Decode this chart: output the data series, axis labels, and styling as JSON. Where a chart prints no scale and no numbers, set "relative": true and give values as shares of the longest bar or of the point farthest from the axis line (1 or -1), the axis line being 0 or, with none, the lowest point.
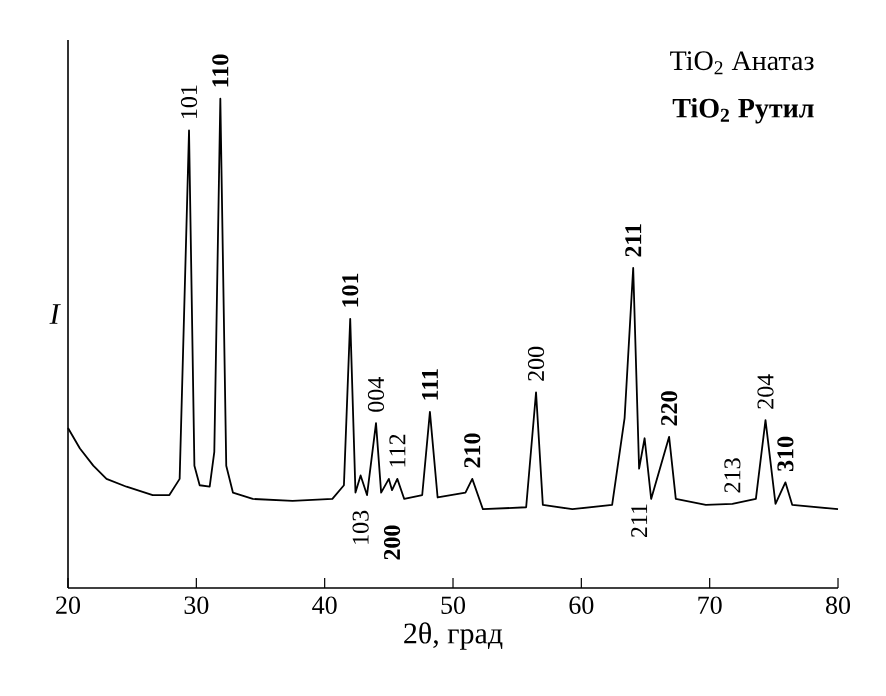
{
  "chart_data": {
    "type": "line",
    "relative": true,
    "xlabel": "2θ, град",
    "ylabel": "I",
    "color": "#000000",
    "xlim": [
      20,
      80
    ],
    "xticks": [
      20,
      30,
      40,
      50,
      60,
      70,
      80
    ],
    "x": [
      20,
      20.93,
      21.97,
      23.0,
      24.56,
      26.6,
      27.9,
      28.7,
      29.43,
      29.85,
      30.26,
      31.04,
      31.4,
      31.87,
      32.33,
      32.85,
      34.4,
      37.5,
      40.6,
      41.5,
      41.99,
      42.4,
      42.8,
      43.3,
      44.0,
      44.4,
      45.0,
      45.25,
      45.66,
      46.2,
      47.6,
      48.2,
      48.8,
      50.97,
      51.5,
      52.33,
      55.7,
      56.47,
      57.0,
      59.3,
      62.4,
      63.37,
      64.04,
      64.5,
      64.93,
      65.44,
      66.84,
      67.36,
      69.7,
      71.77,
      73.6,
      74.35,
      75.13,
      75.9,
      76.43,
      80
    ],
    "values": [
      0.327,
      0.285,
      0.25,
      0.223,
      0.207,
      0.19,
      0.19,
      0.223,
      0.935,
      0.25,
      0.21,
      0.207,
      0.278,
      1.0,
      0.25,
      0.195,
      0.182,
      0.178,
      0.182,
      0.21,
      0.55,
      0.195,
      0.23,
      0.19,
      0.337,
      0.195,
      0.223,
      0.2,
      0.223,
      0.182,
      0.19,
      0.36,
      0.185,
      0.195,
      0.223,
      0.161,
      0.165,
      0.4,
      0.17,
      0.161,
      0.17,
      0.347,
      0.654,
      0.244,
      0.306,
      0.182,
      0.309,
      0.182,
      0.17,
      0.172,
      0.182,
      0.343,
      0.172,
      0.216,
      0.17,
      0.161
    ],
    "annotations": [
      "TiO$_{2}$ Анатаз",
      "**TiO$_{2}$ Рутил**",
      {
        "text": "101",
        "x": 29.43,
        "y": 0.935
      },
      {
        "text": "**110**",
        "x": 31.87,
        "y": 1.0
      },
      {
        "text": "**101**",
        "x": 41.99,
        "y": 0.55
      },
      {
        "text": "004",
        "x": 44.0,
        "y": 0.337
      },
      {
        "text": "112",
        "x": 45.66,
        "y": 0.223
      },
      {
        "text": "**111**",
        "x": 48.2,
        "y": 0.36
      },
      {
        "text": "**210**",
        "x": 51.5,
        "y": 0.223
      },
      {
        "text": "103",
        "x": 42.8,
        "y": 0.23
      },
      {
        "text": "**200**",
        "x": 45.25,
        "y": 0.2
      },
      {
        "text": "200",
        "x": 56.47,
        "y": 0.4
      },
      {
        "text": "**211**",
        "x": 64.04,
        "y": 0.654
      },
      {
        "text": "211",
        "x": 64.5,
        "y": 0.244
      },
      {
        "text": "**220**",
        "x": 66.84,
        "y": 0.309
      },
      {
        "text": "213",
        "x": 71.77,
        "y": 0.172
      },
      {
        "text": "204",
        "x": 74.35,
        "y": 0.343
      },
      {
        "text": "**310**",
        "x": 75.9,
        "y": 0.216
      }
    ]
  }
}
